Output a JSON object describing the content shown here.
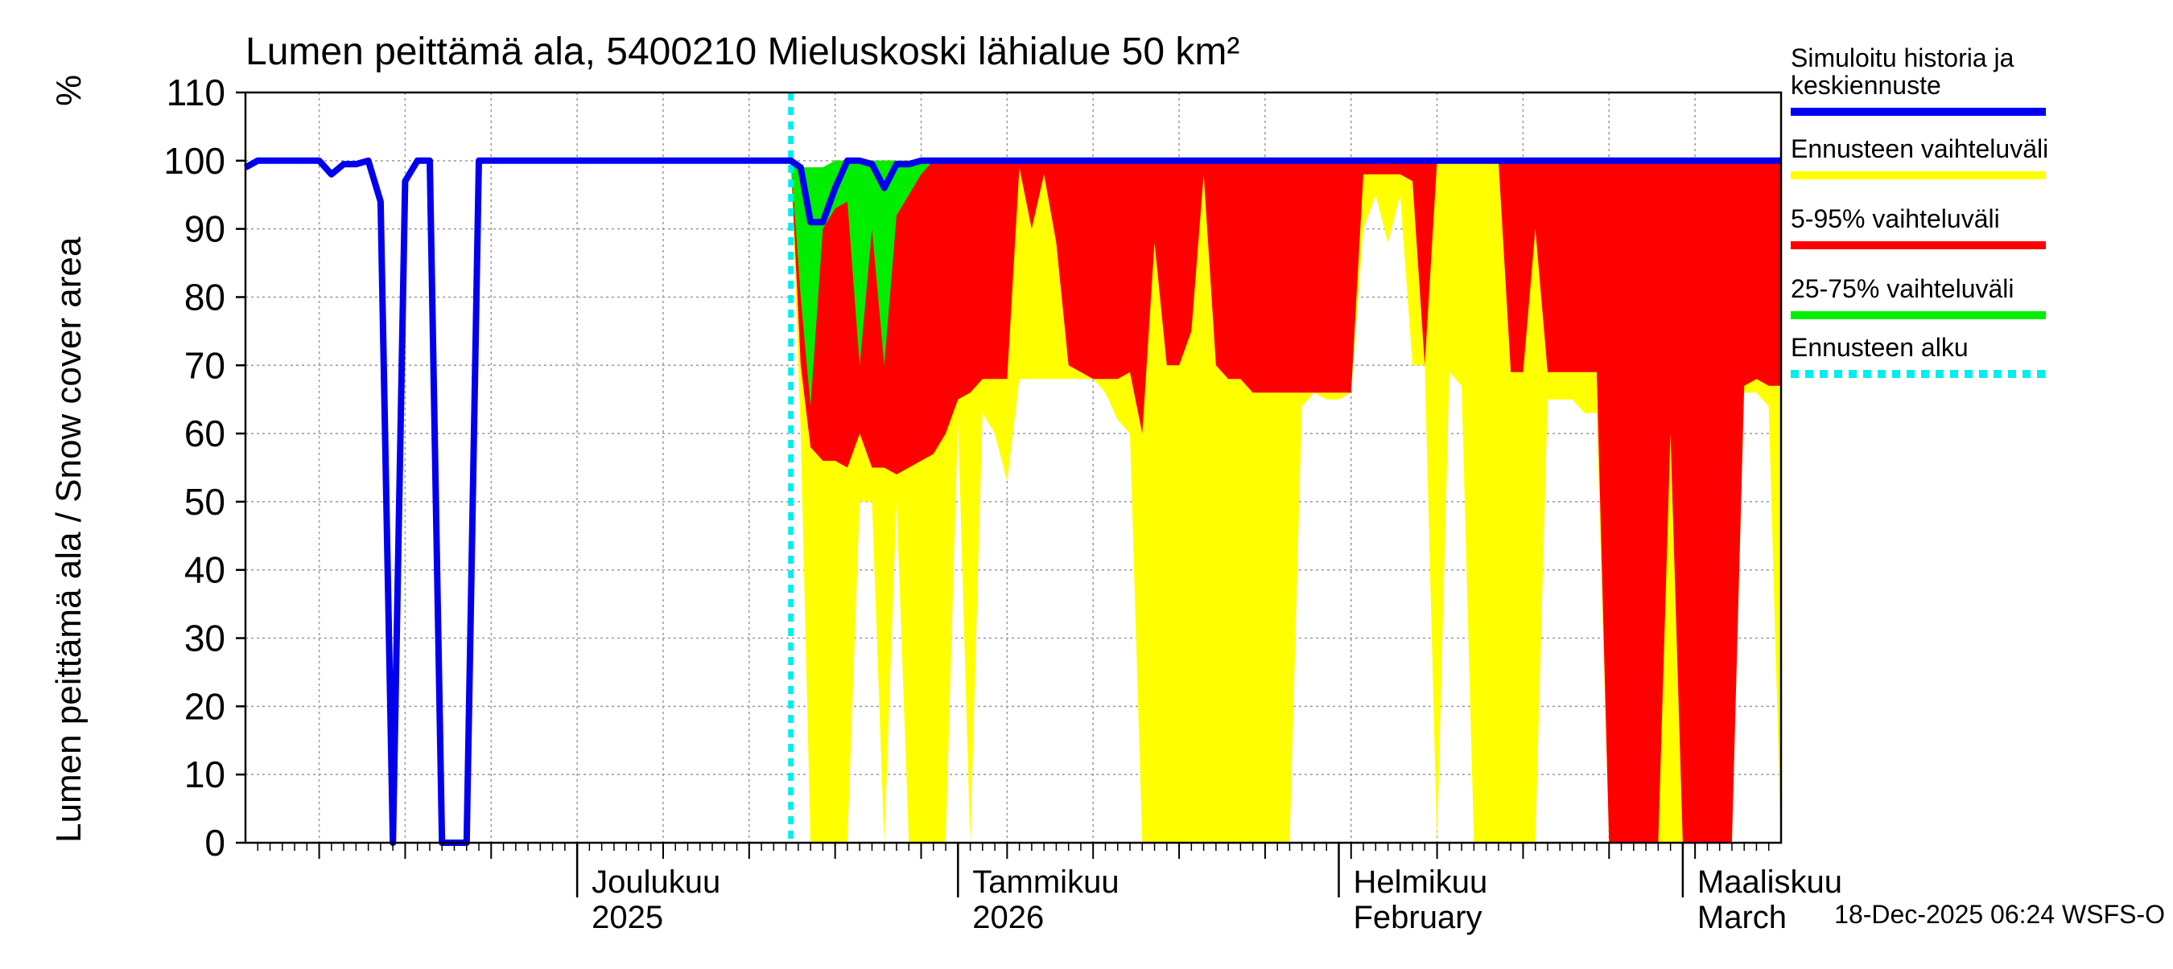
{
  "chart_data": {
    "type": "area",
    "title": "Lumen peittämä ala, 5400210 Mieluskoski lähialue 50 km²",
    "ylabel": "Lumen peittämä ala / Snow cover area",
    "yunit": "%",
    "ylim": [
      0,
      110
    ],
    "yticks": [
      0,
      10,
      20,
      30,
      40,
      50,
      60,
      70,
      80,
      90,
      100,
      110
    ],
    "xlim": [
      -27,
      98
    ],
    "x_units": "days since 2025-12-01",
    "month_ticks": [
      {
        "x": 0,
        "line1": "Joulukuu",
        "line2": "2025"
      },
      {
        "x": 31,
        "line1": "Tammikuu",
        "line2": "2026"
      },
      {
        "x": 62,
        "line1": "Helmikuu",
        "line2": "February"
      },
      {
        "x": 90,
        "line1": "Maaliskuu",
        "line2": "March"
      }
    ],
    "forecast_start": 17.4,
    "timestamp": "18-Dec-2025 06:24 WSFS-O",
    "legend": [
      {
        "label": "Simuloitu historia ja\nkeskiennuste",
        "color": "#0000ee",
        "style": "line"
      },
      {
        "label": "Ennusteen vaihteluväli",
        "color": "#ffff00",
        "style": "band"
      },
      {
        "label": "5-95% vaihteluväli",
        "color": "#ff0000",
        "style": "band"
      },
      {
        "label": "25-75% vaihteluväli",
        "color": "#00ee00",
        "style": "band"
      },
      {
        "label": "Ennusteen alku",
        "color": "#00eeee",
        "style": "dotted"
      }
    ],
    "series": [
      {
        "name": "Ennusteen vaihteluväli",
        "color": "#ffff00",
        "x": [
          17.4,
          18.2,
          19,
          20,
          21,
          22,
          23,
          24,
          25,
          26,
          27,
          28,
          29,
          30,
          31,
          32,
          33,
          34,
          35,
          36,
          37,
          38,
          39,
          40,
          41,
          42,
          43,
          44,
          45,
          46,
          47,
          48,
          49,
          50,
          51,
          52,
          53,
          54,
          55,
          56,
          57,
          58,
          59,
          60,
          61,
          62,
          63,
          64,
          65,
          66,
          67,
          68,
          69,
          70,
          71,
          72,
          73,
          74,
          75,
          76,
          77,
          78,
          79,
          80,
          81,
          82,
          83,
          84,
          85,
          86,
          87,
          88,
          89,
          90,
          91,
          92,
          93,
          94,
          95,
          96,
          97,
          98
        ],
        "upper": [
          100,
          99,
          99,
          99,
          100,
          100,
          100,
          100,
          100,
          100,
          100,
          100,
          100,
          100,
          100,
          100,
          100,
          100,
          100,
          100,
          100,
          100,
          100,
          100,
          100,
          100,
          100,
          100,
          100,
          100,
          100,
          100,
          100,
          100,
          100,
          100,
          100,
          100,
          100,
          100,
          100,
          100,
          100,
          100,
          100,
          100,
          100,
          100,
          100,
          100,
          100,
          100,
          100,
          100,
          100,
          100,
          100,
          100,
          100,
          100,
          100,
          100,
          100,
          100,
          100,
          100,
          100,
          100,
          100,
          100,
          100,
          100,
          100,
          100,
          100,
          100,
          100,
          100,
          100,
          100,
          100,
          100
        ],
        "lower": [
          100,
          60,
          0,
          0,
          0,
          0,
          50,
          50,
          0,
          50,
          0,
          0,
          0,
          0,
          62,
          0,
          63,
          60,
          53,
          68,
          68,
          68,
          68,
          68,
          68,
          68,
          66,
          62,
          60,
          0,
          0,
          0,
          0,
          0,
          0,
          0,
          0,
          0,
          0,
          0,
          0,
          0,
          64,
          66,
          65,
          65,
          66,
          90,
          95,
          88,
          95,
          70,
          70,
          0,
          69,
          67,
          0,
          0,
          0,
          0,
          0,
          0,
          65,
          65,
          65,
          63,
          63,
          0,
          0,
          0,
          0,
          0,
          0,
          0,
          0,
          0,
          0,
          0,
          66,
          66,
          64,
          0
        ]
      },
      {
        "name": "5-95% vaihteluväli",
        "color": "#ff0000",
        "x": [
          17.4,
          18.2,
          19,
          20,
          21,
          22,
          23,
          24,
          25,
          26,
          27,
          28,
          29,
          30,
          31,
          32,
          33,
          34,
          35,
          36,
          37,
          38,
          39,
          40,
          41,
          42,
          43,
          44,
          45,
          46,
          47,
          48,
          49,
          50,
          51,
          52,
          53,
          54,
          55,
          56,
          57,
          58,
          59,
          60,
          61,
          62,
          63,
          64,
          65,
          66,
          67,
          68,
          69,
          70,
          71,
          72,
          73,
          74,
          75,
          76,
          77,
          78,
          79,
          80,
          81,
          82,
          83,
          84,
          85,
          86,
          87,
          88,
          89,
          90,
          91,
          92,
          93,
          94,
          95,
          96,
          97,
          98
        ],
        "upper": [
          100,
          99,
          99,
          99,
          100,
          100,
          100,
          100,
          100,
          100,
          100,
          100,
          100,
          100,
          100,
          100,
          100,
          100,
          100,
          100,
          100,
          100,
          100,
          100,
          100,
          100,
          100,
          100,
          100,
          100,
          100,
          100,
          100,
          100,
          100,
          100,
          100,
          100,
          100,
          100,
          100,
          100,
          100,
          100,
          100,
          100,
          100,
          100,
          100,
          100,
          100,
          100,
          100,
          100,
          100,
          100,
          100,
          100,
          100,
          100,
          100,
          100,
          100,
          100,
          100,
          100,
          100,
          100,
          100,
          100,
          100,
          100,
          100,
          100,
          100,
          100,
          100,
          100,
          100,
          100,
          100,
          100
        ],
        "lower": [
          100,
          70,
          58,
          56,
          56,
          55,
          60,
          55,
          55,
          54,
          55,
          56,
          57,
          60,
          65,
          66,
          68,
          68,
          68,
          99,
          90,
          98,
          88,
          70,
          69,
          68,
          68,
          68,
          69,
          60,
          88,
          70,
          70,
          75,
          98,
          70,
          68,
          68,
          66,
          66,
          66,
          66,
          66,
          66,
          66,
          66,
          66,
          98,
          98,
          98,
          98,
          97,
          70,
          100,
          100,
          100,
          100,
          100,
          100,
          69,
          69,
          90,
          69,
          69,
          69,
          69,
          69,
          0,
          0,
          0,
          0,
          0,
          60,
          0,
          0,
          0,
          0,
          0,
          67,
          68,
          67,
          67
        ]
      },
      {
        "name": "25-75% vaihteluväli",
        "color": "#00ee00",
        "x": [
          17.4,
          18.2,
          19,
          20,
          21,
          22,
          23,
          24,
          25,
          26,
          27,
          28,
          29,
          30
        ],
        "upper": [
          100,
          99,
          99,
          99,
          100,
          100,
          100,
          100,
          100,
          100,
          100,
          100,
          100,
          100
        ],
        "lower": [
          100,
          80,
          64,
          90,
          93,
          94,
          70,
          90,
          70,
          92,
          95,
          98,
          100,
          100
        ]
      }
    ],
    "history_line": {
      "name": "Simuloitu historia ja keskiennuste",
      "color": "#0000ee",
      "x": [
        -27,
        -26,
        -24,
        -22,
        -21,
        -20,
        -19,
        -18,
        -17,
        -16,
        -15,
        -14,
        -13,
        -12,
        -11,
        -10,
        -9,
        -8,
        -7,
        -6,
        -5,
        -4,
        -3,
        0,
        5,
        10,
        15,
        17.4,
        18.2,
        19,
        20,
        21,
        22,
        23,
        24,
        25,
        26,
        27,
        28,
        29,
        30,
        40,
        50,
        60,
        70,
        80,
        90,
        98
      ],
      "y": [
        99,
        100,
        100,
        100,
        100,
        98,
        99.5,
        99.5,
        100,
        94,
        0,
        97,
        100,
        100,
        0,
        0,
        0,
        100,
        100,
        100,
        100,
        100,
        100,
        100,
        100,
        100,
        100,
        100,
        99,
        91,
        91,
        96,
        100,
        100,
        99.5,
        96,
        99.5,
        99.5,
        100,
        100,
        100,
        100,
        100,
        100,
        100,
        100,
        100,
        100
      ]
    }
  }
}
